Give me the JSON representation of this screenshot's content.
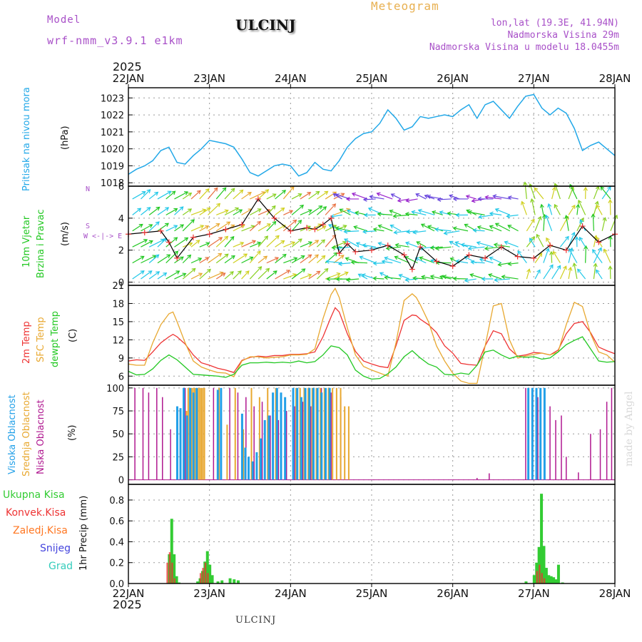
{
  "header": {
    "model_label": "Model",
    "model_name": "wrf-nmm_v3.9.1 e1km",
    "station": "ULCINJ",
    "meteogram": "Meteogram",
    "lonlat": "lon,lat (19.3E, 41.94N)",
    "elevation": "Nadmorska Visina 29m",
    "model_elevation": "Nadmorska Visina u modelu 18.0455m",
    "year_top": "2025",
    "year_bottom": "2025",
    "footer_station": "ULCINJ",
    "credit": "made by Angel"
  },
  "colors": {
    "pressure": "#22a8e8",
    "temp2m": "#ee3333",
    "sfctemp": "#e8a830",
    "dewpt": "#22c822",
    "high_cloud": "#22a0e8",
    "mid_cloud": "#e8a830",
    "low_cloud": "#b01890",
    "total_precip": "#33cc33",
    "conv_precip": "#ee3333",
    "frozen": "#ff7722",
    "snow": "#4444dd",
    "hail": "#33ccbb",
    "header_purple": "#a850c8"
  },
  "chart_data": [
    {
      "type": "line",
      "panel": "pressure",
      "ylabel_lines": [
        "Pritisak na nivou mora",
        "(hPa)"
      ],
      "yticks": [
        1018,
        1019,
        1020,
        1021,
        1022,
        1023
      ],
      "ylim": [
        1017.8,
        1023.6
      ],
      "x_ticks": [
        "22JAN",
        "23JAN",
        "24JAN",
        "25JAN",
        "26JAN",
        "27JAN",
        "28JAN"
      ],
      "xlim_days": [
        0,
        6
      ],
      "grid": true,
      "series": [
        {
          "name": "Pritisak na nivou mora",
          "x": [
            0,
            0.1,
            0.2,
            0.3,
            0.4,
            0.5,
            0.6,
            0.7,
            0.8,
            0.9,
            1.0,
            1.1,
            1.2,
            1.3,
            1.4,
            1.5,
            1.6,
            1.7,
            1.8,
            1.9,
            2.0,
            2.1,
            2.2,
            2.3,
            2.4,
            2.5,
            2.6,
            2.7,
            2.8,
            2.9,
            3.0,
            3.1,
            3.2,
            3.3,
            3.4,
            3.5,
            3.6,
            3.7,
            3.8,
            3.9,
            4.0,
            4.1,
            4.2,
            4.3,
            4.4,
            4.5,
            4.6,
            4.7,
            4.8,
            4.9,
            5.0,
            5.1,
            5.2,
            5.3,
            5.4,
            5.5,
            5.6,
            5.7,
            5.8,
            5.9,
            6.0
          ],
          "y": [
            1018.5,
            1018.8,
            1019.0,
            1019.3,
            1019.9,
            1020.1,
            1019.2,
            1019.1,
            1019.6,
            1020.0,
            1020.5,
            1020.4,
            1020.3,
            1020.1,
            1019.4,
            1018.6,
            1018.4,
            1018.7,
            1019.0,
            1019.1,
            1019.0,
            1018.4,
            1018.6,
            1019.2,
            1018.8,
            1018.7,
            1019.3,
            1020.1,
            1020.6,
            1020.9,
            1021.0,
            1021.5,
            1022.3,
            1021.8,
            1021.1,
            1021.3,
            1021.9,
            1021.8,
            1021.9,
            1022.0,
            1021.9,
            1022.3,
            1022.6,
            1021.8,
            1022.6,
            1022.8,
            1022.3,
            1021.8,
            1022.5,
            1023.1,
            1023.2,
            1022.4,
            1022.0,
            1022.4,
            1022.1,
            1021.2,
            1019.9,
            1020.2,
            1020.4,
            1020.0,
            1019.6
          ]
        }
      ]
    },
    {
      "type": "line",
      "panel": "wind",
      "ylabel_lines": [
        "10m Vjetar",
        "Brzina i Pravac",
        "(m/s)"
      ],
      "compass": "W <-|-> E",
      "compass_north": "N",
      "compass_south": "S",
      "yticks": [
        0,
        2,
        4,
        6
      ],
      "ylim": [
        -0.2,
        6.0
      ],
      "grid": true,
      "series": [
        {
          "name": "Brzina",
          "x": [
            0,
            0.2,
            0.4,
            0.5,
            0.6,
            0.8,
            1.0,
            1.2,
            1.4,
            1.6,
            1.8,
            2.0,
            2.2,
            2.3,
            2.4,
            2.5,
            2.6,
            2.7,
            2.8,
            3.0,
            3.2,
            3.4,
            3.5,
            3.6,
            3.8,
            4.0,
            4.2,
            4.4,
            4.6,
            4.8,
            5.0,
            5.2,
            5.4,
            5.6,
            5.8,
            6.0
          ],
          "y": [
            3.0,
            3.1,
            3.2,
            2.5,
            1.5,
            2.8,
            3.0,
            3.3,
            3.6,
            5.2,
            4.0,
            3.2,
            3.4,
            3.3,
            3.6,
            4.0,
            1.8,
            2.4,
            1.9,
            2.0,
            2.3,
            1.7,
            0.8,
            2.2,
            1.3,
            1.0,
            1.7,
            1.5,
            2.2,
            1.6,
            1.5,
            2.3,
            2.0,
            3.5,
            2.5,
            3.0
          ]
        }
      ]
    },
    {
      "type": "line",
      "panel": "temperature",
      "ylabel_lines": [
        "2m Temp",
        "SFC Temp",
        "dewpt Temp",
        "(C)"
      ],
      "yticks": [
        6,
        9,
        12,
        15,
        18,
        21
      ],
      "ylim": [
        4.5,
        21
      ],
      "grid": true,
      "series": [
        {
          "name": "2m Temp",
          "x": [
            0,
            0.1,
            0.2,
            0.3,
            0.4,
            0.5,
            0.55,
            0.6,
            0.7,
            0.8,
            0.9,
            1.0,
            1.1,
            1.2,
            1.3,
            1.4,
            1.5,
            1.6,
            1.7,
            1.8,
            1.9,
            2.0,
            2.1,
            2.2,
            2.3,
            2.4,
            2.5,
            2.55,
            2.6,
            2.7,
            2.8,
            2.9,
            3.0,
            3.1,
            3.2,
            3.3,
            3.4,
            3.5,
            3.55,
            3.6,
            3.7,
            3.8,
            3.9,
            4.0,
            4.1,
            4.2,
            4.3,
            4.4,
            4.5,
            4.6,
            4.7,
            4.8,
            4.9,
            5.0,
            5.1,
            5.2,
            5.3,
            5.4,
            5.5,
            5.6,
            5.7,
            5.8,
            5.9,
            6.0
          ],
          "y": [
            8.5,
            8.7,
            8.6,
            10.0,
            11.5,
            12.5,
            12.9,
            12.5,
            11.3,
            9.5,
            8.2,
            7.8,
            7.3,
            7.0,
            6.6,
            8.6,
            9.1,
            9.3,
            9.2,
            9.4,
            9.4,
            9.6,
            9.6,
            9.7,
            10.0,
            12.5,
            15.8,
            17.3,
            16.6,
            13.0,
            10.1,
            8.5,
            8.0,
            7.6,
            7.4,
            11.0,
            15.2,
            16.1,
            16.0,
            15.4,
            14.5,
            13.2,
            11.0,
            9.8,
            8.1,
            7.9,
            7.8,
            11.0,
            13.5,
            13.0,
            10.5,
            9.3,
            9.5,
            9.9,
            9.8,
            9.5,
            10.3,
            13.0,
            14.7,
            15.0,
            13.2,
            10.8,
            10.2,
            9.7
          ]
        },
        {
          "name": "SFC Temp",
          "x": [
            0,
            0.1,
            0.2,
            0.3,
            0.4,
            0.5,
            0.55,
            0.6,
            0.7,
            0.8,
            0.9,
            1.0,
            1.1,
            1.2,
            1.3,
            1.4,
            1.5,
            1.6,
            1.7,
            1.8,
            1.9,
            2.0,
            2.1,
            2.2,
            2.3,
            2.4,
            2.5,
            2.55,
            2.6,
            2.7,
            2.8,
            2.9,
            3.0,
            3.1,
            3.2,
            3.3,
            3.4,
            3.5,
            3.55,
            3.6,
            3.7,
            3.8,
            3.9,
            4.0,
            4.1,
            4.2,
            4.3,
            4.4,
            4.5,
            4.6,
            4.7,
            4.8,
            4.9,
            5.0,
            5.1,
            5.2,
            5.3,
            5.4,
            5.5,
            5.6,
            5.7,
            5.8,
            5.9,
            6.0
          ],
          "y": [
            8.0,
            7.8,
            7.8,
            11.5,
            14.5,
            16.3,
            16.6,
            15.0,
            11.5,
            8.5,
            7.5,
            7.0,
            6.6,
            6.5,
            5.9,
            8.5,
            9.2,
            9.2,
            9.0,
            9.1,
            9.2,
            9.5,
            9.5,
            9.6,
            10.5,
            15.5,
            19.5,
            20.5,
            19.0,
            14.0,
            9.5,
            7.6,
            7.0,
            6.5,
            6.0,
            11.5,
            18.5,
            19.6,
            19.0,
            17.8,
            15.0,
            11.0,
            8.5,
            6.5,
            5.2,
            4.8,
            4.8,
            11.0,
            17.6,
            18.0,
            12.0,
            9.0,
            9.3,
            9.6,
            9.8,
            9.5,
            10.0,
            14.5,
            18.2,
            17.5,
            13.0,
            10.0,
            9.5,
            8.3
          ]
        },
        {
          "name": "dewpt Temp",
          "x": [
            0,
            0.1,
            0.2,
            0.3,
            0.4,
            0.5,
            0.6,
            0.7,
            0.8,
            0.9,
            1.0,
            1.1,
            1.2,
            1.3,
            1.4,
            1.5,
            1.6,
            1.7,
            1.8,
            1.9,
            2.0,
            2.1,
            2.2,
            2.3,
            2.4,
            2.5,
            2.6,
            2.7,
            2.8,
            2.9,
            3.0,
            3.1,
            3.2,
            3.3,
            3.4,
            3.5,
            3.6,
            3.7,
            3.8,
            3.9,
            4.0,
            4.1,
            4.2,
            4.3,
            4.4,
            4.5,
            4.6,
            4.7,
            4.8,
            4.9,
            5.0,
            5.1,
            5.2,
            5.3,
            5.4,
            5.5,
            5.6,
            5.7,
            5.8,
            5.9,
            6.0
          ],
          "y": [
            6.8,
            6.2,
            6.3,
            7.2,
            8.6,
            9.5,
            8.7,
            7.5,
            6.3,
            6.2,
            6.1,
            6.0,
            5.8,
            6.3,
            7.8,
            8.2,
            8.2,
            8.3,
            8.2,
            8.3,
            8.2,
            8.5,
            8.2,
            8.4,
            9.5,
            11.0,
            10.7,
            9.5,
            7.0,
            6.0,
            5.5,
            5.6,
            6.4,
            7.5,
            9.2,
            10.2,
            9.0,
            8.0,
            7.5,
            6.3,
            6.2,
            6.5,
            6.3,
            7.8,
            10.0,
            10.3,
            9.5,
            8.9,
            9.3,
            9.1,
            9.2,
            8.8,
            9.0,
            10.0,
            11.2,
            11.9,
            12.5,
            10.5,
            8.5,
            8.3,
            8.4
          ]
        }
      ]
    },
    {
      "type": "bar",
      "panel": "cloud",
      "ylabel_lines": [
        "Visoka Oblacnost",
        "Srednja Oblacnost",
        "Niska Oblacnost",
        "(%)"
      ],
      "yticks": [
        0,
        25,
        50,
        75,
        100
      ],
      "ylim": [
        -5,
        103
      ],
      "grid": true,
      "series": [
        {
          "name": "Niska Oblacnost",
          "x": [
            0.08,
            0.18,
            0.25,
            0.35,
            0.42,
            0.52,
            0.6,
            0.7,
            0.9,
            1.05,
            1.12,
            1.25,
            1.35,
            1.45,
            1.55,
            1.65,
            1.75,
            1.85,
            1.95,
            2.05,
            2.15,
            2.25,
            2.38,
            2.5,
            2.62,
            4.3,
            4.45,
            4.9,
            4.98,
            5.05,
            5.2,
            5.27,
            5.34,
            5.4,
            5.55,
            5.7,
            5.82,
            5.9,
            5.96
          ],
          "y": [
            100,
            100,
            95,
            100,
            90,
            55,
            75,
            100,
            80,
            100,
            80,
            100,
            95,
            90,
            80,
            85,
            70,
            65,
            75,
            80,
            85,
            80,
            100,
            95,
            90,
            2,
            7,
            100,
            100,
            90,
            80,
            65,
            70,
            25,
            8,
            50,
            55,
            85,
            100
          ]
        },
        {
          "name": "Srednja Oblacnost",
          "x": [
            0.7,
            0.72,
            0.74,
            0.76,
            0.78,
            0.8,
            0.82,
            0.84,
            0.86,
            0.88,
            0.9,
            0.92,
            1.1,
            1.2,
            1.3,
            1.4,
            1.5,
            1.6,
            1.7,
            1.8,
            2.05,
            2.1,
            2.15,
            2.2,
            2.25,
            2.3,
            2.35,
            2.4,
            2.45,
            2.5,
            2.55,
            2.6,
            2.65,
            2.7
          ],
          "y": [
            75,
            100,
            100,
            100,
            100,
            100,
            100,
            100,
            100,
            100,
            100,
            100,
            100,
            60,
            100,
            55,
            100,
            90,
            100,
            100,
            100,
            100,
            100,
            100,
            100,
            100,
            100,
            100,
            100,
            100,
            100,
            100,
            80,
            80
          ]
        },
        {
          "name": "Visoka Oblacnost",
          "x": [
            0.62,
            0.66,
            0.7,
            0.74,
            0.78,
            0.82,
            0.86,
            1.12,
            1.16,
            1.42,
            1.46,
            1.5,
            1.55,
            1.6,
            1.65,
            1.7,
            1.75,
            1.8,
            1.85,
            1.9,
            1.95,
            2.05,
            2.1,
            2.15,
            2.2,
            2.25,
            2.3,
            2.35,
            2.4,
            2.45,
            2.5,
            4.95,
            5.0,
            5.05,
            5.1,
            5.15
          ],
          "y": [
            80,
            78,
            100,
            70,
            100,
            95,
            100,
            98,
            100,
            72,
            35,
            25,
            20,
            30,
            45,
            65,
            70,
            95,
            100,
            95,
            90,
            100,
            100,
            90,
            100,
            100,
            100,
            100,
            95,
            100,
            100,
            100,
            100,
            100,
            100,
            100
          ]
        }
      ]
    },
    {
      "type": "bar",
      "panel": "precip",
      "ylabel_lines": [
        "1hr Precip (mm)"
      ],
      "legend": [
        "Ukupna Kisa",
        "Konvek.Kisa",
        "Zaledj.Kisa",
        "Snijeg",
        "Grad"
      ],
      "legend_position": "left",
      "yticks": [
        0.0,
        0.2,
        0.4,
        0.6,
        0.8
      ],
      "ylim": [
        0,
        0.95
      ],
      "grid": true,
      "series": [
        {
          "name": "Ukupna Kisa",
          "x": [
            0.5,
            0.53,
            0.56,
            0.59,
            0.62,
            0.85,
            0.88,
            0.91,
            0.94,
            0.97,
            1.0,
            1.03,
            1.1,
            1.15,
            1.25,
            1.3,
            1.35,
            4.9,
            5.0,
            5.03,
            5.06,
            5.09,
            5.12,
            5.15,
            5.18,
            5.21,
            5.24,
            5.27,
            5.3,
            5.35
          ],
          "y": [
            0.28,
            0.62,
            0.28,
            0.07,
            0.01,
            0.02,
            0.05,
            0.12,
            0.21,
            0.31,
            0.18,
            0.08,
            0.02,
            0.03,
            0.05,
            0.04,
            0.03,
            0.02,
            0.08,
            0.2,
            0.35,
            0.86,
            0.36,
            0.15,
            0.08,
            0.07,
            0.06,
            0.04,
            0.18,
            0.01
          ]
        },
        {
          "name": "Konvek.Kisa",
          "x": [
            0.5,
            0.53,
            0.56,
            0.59,
            0.91,
            0.94,
            0.97,
            1.0,
            5.06,
            5.09,
            5.12,
            5.15
          ],
          "y": [
            0.2,
            0.3,
            0.2,
            0.05,
            0.1,
            0.15,
            0.2,
            0.1,
            0.12,
            0.18,
            0.1,
            0.05
          ]
        }
      ]
    }
  ]
}
